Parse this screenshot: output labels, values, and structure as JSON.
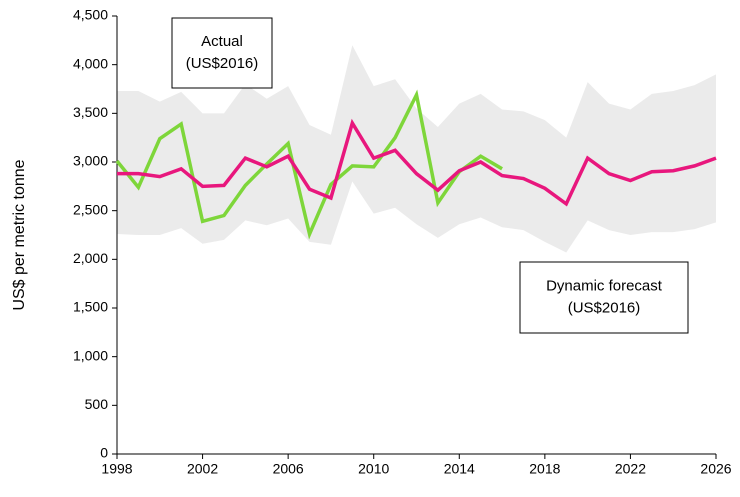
{
  "chart_data": {
    "type": "line",
    "y_label": "US$ per metric tonne",
    "x": [
      1998,
      1999,
      2000,
      2001,
      2002,
      2003,
      2004,
      2005,
      2006,
      2007,
      2008,
      2009,
      2010,
      2011,
      2012,
      2013,
      2014,
      2015,
      2016,
      2017,
      2018,
      2019,
      2020,
      2021,
      2022,
      2023,
      2024,
      2025,
      2026
    ],
    "series": [
      {
        "color": "#7ed63a",
        "values": [
          3010,
          2740,
          3240,
          3390,
          2390,
          2450,
          2760,
          2980,
          3190,
          2260,
          2770,
          2960,
          2950,
          3250,
          3690,
          2580,
          2900,
          3060,
          2930,
          null,
          null,
          null,
          null,
          null,
          null,
          null,
          null,
          null,
          null
        ]
      },
      {
        "color": "#e8177d",
        "values": [
          2880,
          2880,
          2850,
          2930,
          2750,
          2760,
          3040,
          2950,
          3060,
          2720,
          2630,
          3400,
          3040,
          3120,
          2880,
          2710,
          2910,
          3000,
          2860,
          2830,
          2730,
          2570,
          3040,
          2880,
          2810,
          2900,
          2910,
          2960,
          3040
        ]
      }
    ],
    "band": {
      "color": "#ebebeb",
      "upper": [
        3730,
        3730,
        3620,
        3720,
        3500,
        3500,
        3800,
        3650,
        3780,
        3380,
        3280,
        4200,
        3780,
        3850,
        3550,
        3360,
        3600,
        3700,
        3540,
        3520,
        3430,
        3250,
        3820,
        3600,
        3540,
        3700,
        3730,
        3790,
        3900
      ],
      "lower": [
        2260,
        2250,
        2250,
        2320,
        2160,
        2200,
        2400,
        2350,
        2420,
        2180,
        2150,
        2800,
        2470,
        2530,
        2360,
        2220,
        2360,
        2430,
        2330,
        2300,
        2180,
        2070,
        2400,
        2300,
        2250,
        2280,
        2280,
        2310,
        2380
      ]
    },
    "annotations": [
      {
        "lines": [
          "Actual",
          "(US$2016)"
        ]
      },
      {
        "lines": [
          "Dynamic forecast",
          "(US$2016)"
        ]
      }
    ],
    "xlim": [
      1998,
      2026
    ],
    "xticks": [
      1998,
      2002,
      2006,
      2010,
      2014,
      2018,
      2022,
      2026
    ],
    "ylim": [
      0,
      4500
    ],
    "yticks": [
      0,
      500,
      {
        "value": 1000,
        "label": "1,000"
      },
      {
        "value": 1500,
        "label": "1,500"
      },
      {
        "value": 2000,
        "label": "2,000"
      },
      {
        "value": 2500,
        "label": "2,500"
      },
      {
        "value": 3000,
        "label": "3,000"
      },
      {
        "value": 3500,
        "label": "3,500"
      },
      {
        "value": 4000,
        "label": "4,000"
      },
      {
        "value": 4500,
        "label": "4,500"
      }
    ]
  }
}
